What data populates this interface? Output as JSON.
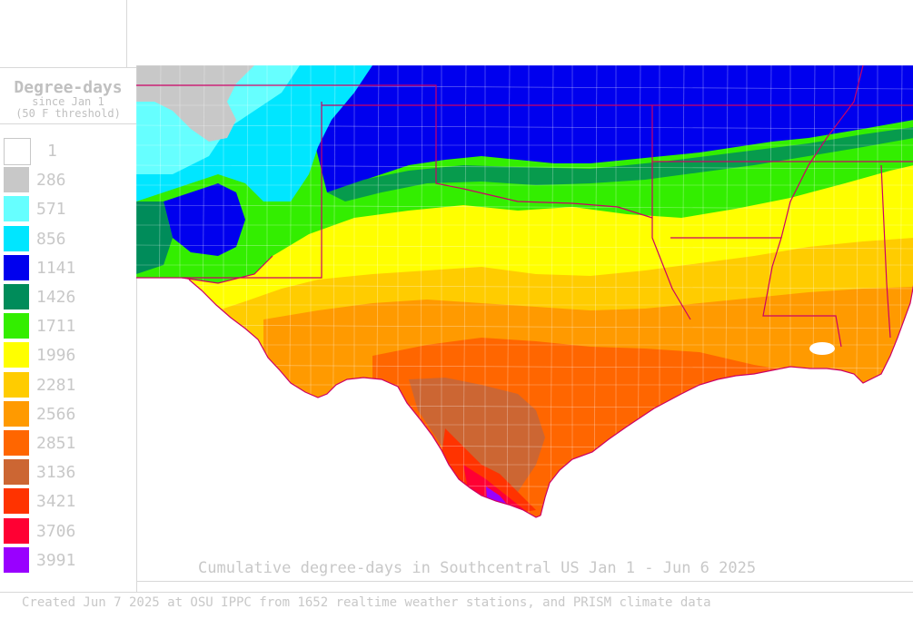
{
  "legend": {
    "title": "Degree-days",
    "subtitle1": "since Jan 1",
    "subtitle2": "(50 F threshold)",
    "items": [
      {
        "label": "1",
        "color": "#ffffff"
      },
      {
        "label": "286",
        "color": "#c8c8c8"
      },
      {
        "label": "571",
        "color": "#66ffff"
      },
      {
        "label": "856",
        "color": "#00e6ff"
      },
      {
        "label": "1141",
        "color": "#0000ee"
      },
      {
        "label": "1426",
        "color": "#008c5a"
      },
      {
        "label": "1711",
        "color": "#33ee00"
      },
      {
        "label": "1996",
        "color": "#ffff00"
      },
      {
        "label": "2281",
        "color": "#ffcc00"
      },
      {
        "label": "2566",
        "color": "#ff9a00"
      },
      {
        "label": "2851",
        "color": "#ff6600"
      },
      {
        "label": "3136",
        "color": "#cc6633"
      },
      {
        "label": "3421",
        "color": "#ff3300"
      },
      {
        "label": "3706",
        "color": "#ff0033"
      },
      {
        "label": "3991",
        "color": "#9900ff"
      }
    ]
  },
  "map_title": "Cumulative degree-days in Southcentral US Jan 1 - Jun 6 2025",
  "footer": "Created Jun 7 2025 at OSU IPPC from 1652 realtime weather stations, and PRISM climate data"
}
